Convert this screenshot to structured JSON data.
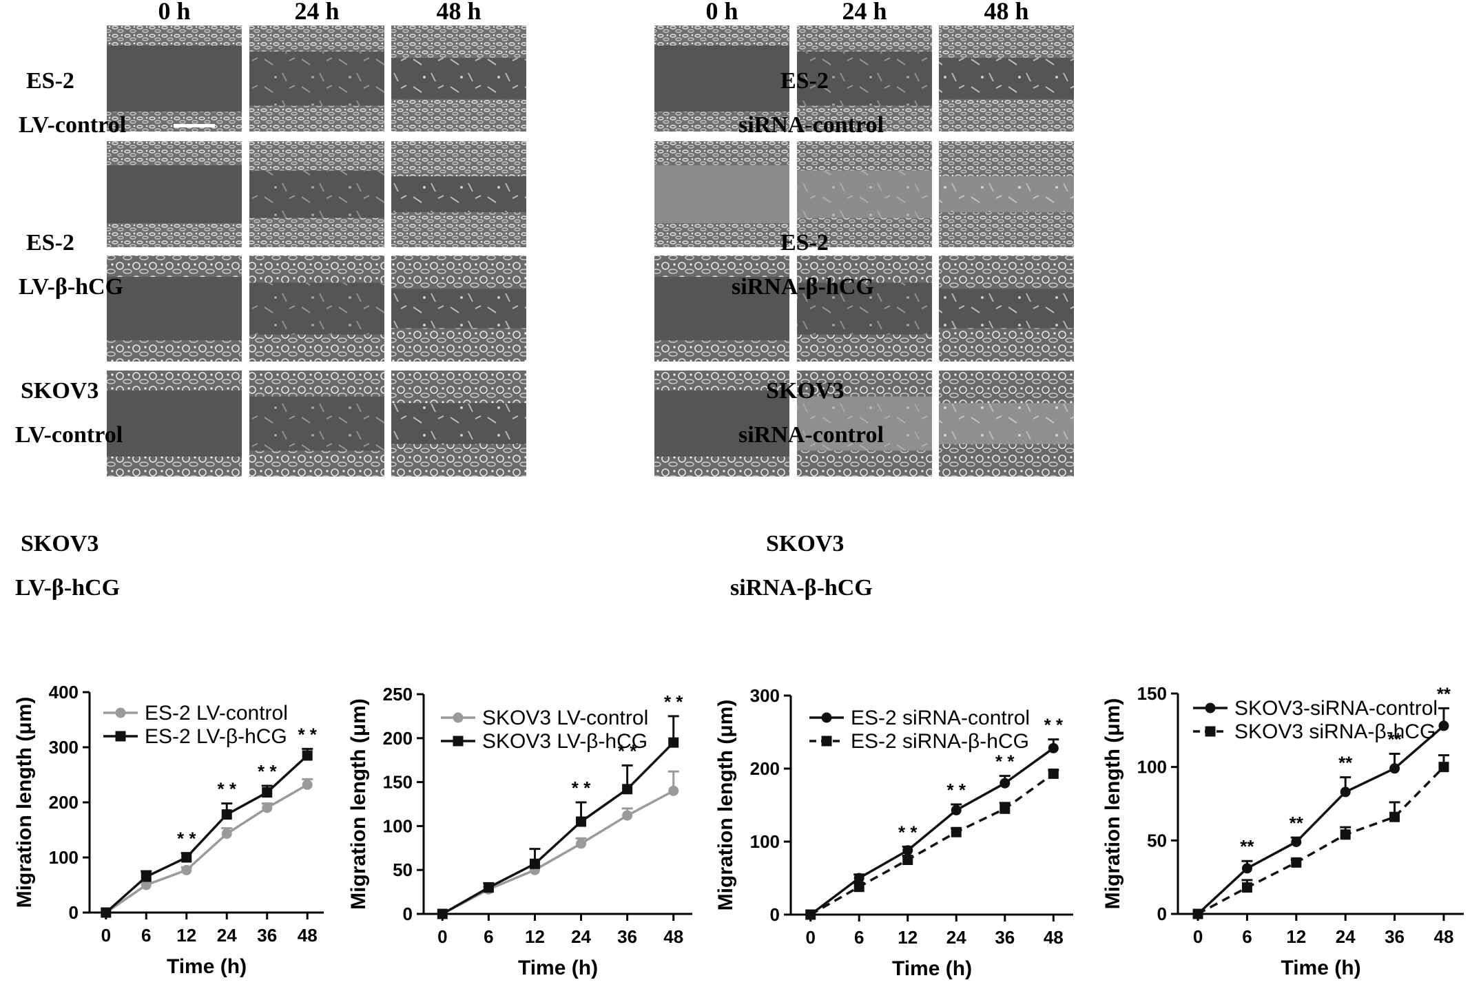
{
  "panel_a": {
    "time_headers": [
      "0 h",
      "24 h",
      "48 h"
    ],
    "rows": [
      {
        "line1": "ES-2",
        "line2": "LV-control"
      },
      {
        "line1": "ES-2",
        "line2": "LV-β-hCG"
      },
      {
        "line1": "SKOV3",
        "line2": "LV-control"
      },
      {
        "line1": "SKOV3",
        "line2": "LV-β-hCG"
      }
    ]
  },
  "panel_b": {
    "time_headers": [
      "0 h",
      "24 h",
      "48 h"
    ],
    "rows": [
      {
        "line1": "ES-2",
        "line2": "siRNA-control"
      },
      {
        "line1": "ES-2",
        "line2": "siRNA-β-hCG"
      },
      {
        "line1": "SKOV3",
        "line2": "siRNA-control"
      },
      {
        "line1": "SKOV3",
        "line2": "siRNA-β-hCG"
      }
    ]
  },
  "chart_data": [
    {
      "type": "line",
      "xlabel": "Time (h)",
      "ylabel": "Migration length (μm)",
      "x": [
        0,
        6,
        12,
        24,
        36,
        48
      ],
      "xticks": [
        "0",
        "6",
        "12",
        "24",
        "36",
        "48"
      ],
      "ylim": [
        0,
        400
      ],
      "yticks": [
        0,
        100,
        200,
        300,
        400
      ],
      "legend": "top-left",
      "series": [
        {
          "name": "ES-2 LV-control",
          "color": "#9a9a9a",
          "marker": "circle",
          "dash": "solid",
          "values": [
            0,
            50,
            77,
            143,
            190,
            232
          ],
          "err": [
            0,
            4,
            5,
            10,
            8,
            10
          ]
        },
        {
          "name": "ES-2 LV-β-hCG",
          "color": "#111111",
          "marker": "square",
          "dash": "solid",
          "values": [
            0,
            65,
            100,
            178,
            218,
            285
          ],
          "err": [
            0,
            10,
            8,
            20,
            12,
            12
          ]
        }
      ],
      "annotations": [
        {
          "x": 12,
          "text": "* *"
        },
        {
          "x": 24,
          "text": "* *"
        },
        {
          "x": 36,
          "text": "* *"
        },
        {
          "x": 48,
          "text": "* *"
        }
      ]
    },
    {
      "type": "line",
      "xlabel": "Time (h)",
      "ylabel": "Migration length (μm)",
      "x": [
        0,
        6,
        12,
        24,
        36,
        48
      ],
      "xticks": [
        "0",
        "6",
        "12",
        "24",
        "36",
        "48"
      ],
      "ylim": [
        0,
        250
      ],
      "yticks": [
        0,
        50,
        100,
        150,
        200,
        250
      ],
      "legend": "top-left",
      "series": [
        {
          "name": "SKOV3 LV-control",
          "color": "#9a9a9a",
          "marker": "circle",
          "dash": "solid",
          "values": [
            0,
            28,
            50,
            80,
            112,
            140
          ],
          "err": [
            0,
            3,
            5,
            6,
            8,
            22
          ]
        },
        {
          "name": "SKOV3 LV-β-hCG",
          "color": "#111111",
          "marker": "square",
          "dash": "solid",
          "values": [
            0,
            30,
            57,
            105,
            142,
            195
          ],
          "err": [
            0,
            5,
            17,
            22,
            27,
            30
          ]
        }
      ],
      "annotations": [
        {
          "x": 24,
          "text": "* *"
        },
        {
          "x": 36,
          "text": "* *"
        },
        {
          "x": 48,
          "text": "* *"
        }
      ]
    },
    {
      "type": "line",
      "xlabel": "Time (h)",
      "ylabel": "Migration length (μm)",
      "x": [
        0,
        6,
        12,
        24,
        36,
        48
      ],
      "xticks": [
        "0",
        "6",
        "12",
        "24",
        "36",
        "48"
      ],
      "ylim": [
        0,
        300
      ],
      "yticks": [
        0,
        100,
        200,
        300
      ],
      "legend": "top-left",
      "series": [
        {
          "name": "ES-2 siRNA-control",
          "color": "#111111",
          "marker": "circle",
          "dash": "solid",
          "values": [
            0,
            50,
            88,
            143,
            180,
            228
          ],
          "err": [
            0,
            5,
            5,
            8,
            10,
            12
          ]
        },
        {
          "name": "ES-2 siRNA-β-hCG",
          "color": "#111111",
          "marker": "square",
          "dash": "dashed",
          "values": [
            0,
            38,
            75,
            113,
            145,
            193
          ],
          "err": [
            0,
            5,
            5,
            5,
            8,
            5
          ]
        }
      ],
      "annotations": [
        {
          "x": 12,
          "text": "* *"
        },
        {
          "x": 24,
          "text": "* *"
        },
        {
          "x": 36,
          "text": "* *"
        },
        {
          "x": 48,
          "text": "* *"
        }
      ]
    },
    {
      "type": "line",
      "xlabel": "Time (h)",
      "ylabel": "Migration length (μm)",
      "x": [
        0,
        6,
        12,
        24,
        36,
        48
      ],
      "xticks": [
        "0",
        "6",
        "12",
        "24",
        "36",
        "48"
      ],
      "ylim": [
        0,
        150
      ],
      "yticks": [
        0,
        50,
        100,
        150
      ],
      "legend": "top-left",
      "series": [
        {
          "name": "SKOV3-siRNA-control",
          "color": "#111111",
          "marker": "circle",
          "dash": "solid",
          "values": [
            0,
            31,
            49,
            83,
            99,
            128
          ],
          "err": [
            0,
            5,
            3,
            10,
            10,
            12
          ]
        },
        {
          "name": "SKOV3 siRNA-β-hCG",
          "color": "#111111",
          "marker": "square",
          "dash": "dashed",
          "values": [
            0,
            18,
            35,
            54,
            66,
            100
          ],
          "err": [
            0,
            5,
            2,
            5,
            10,
            8
          ]
        }
      ],
      "annotations": [
        {
          "x": 6,
          "text": "**"
        },
        {
          "x": 12,
          "text": "**"
        },
        {
          "x": 24,
          "text": "**"
        },
        {
          "x": 36,
          "text": "**"
        },
        {
          "x": 48,
          "text": "**"
        }
      ]
    }
  ]
}
